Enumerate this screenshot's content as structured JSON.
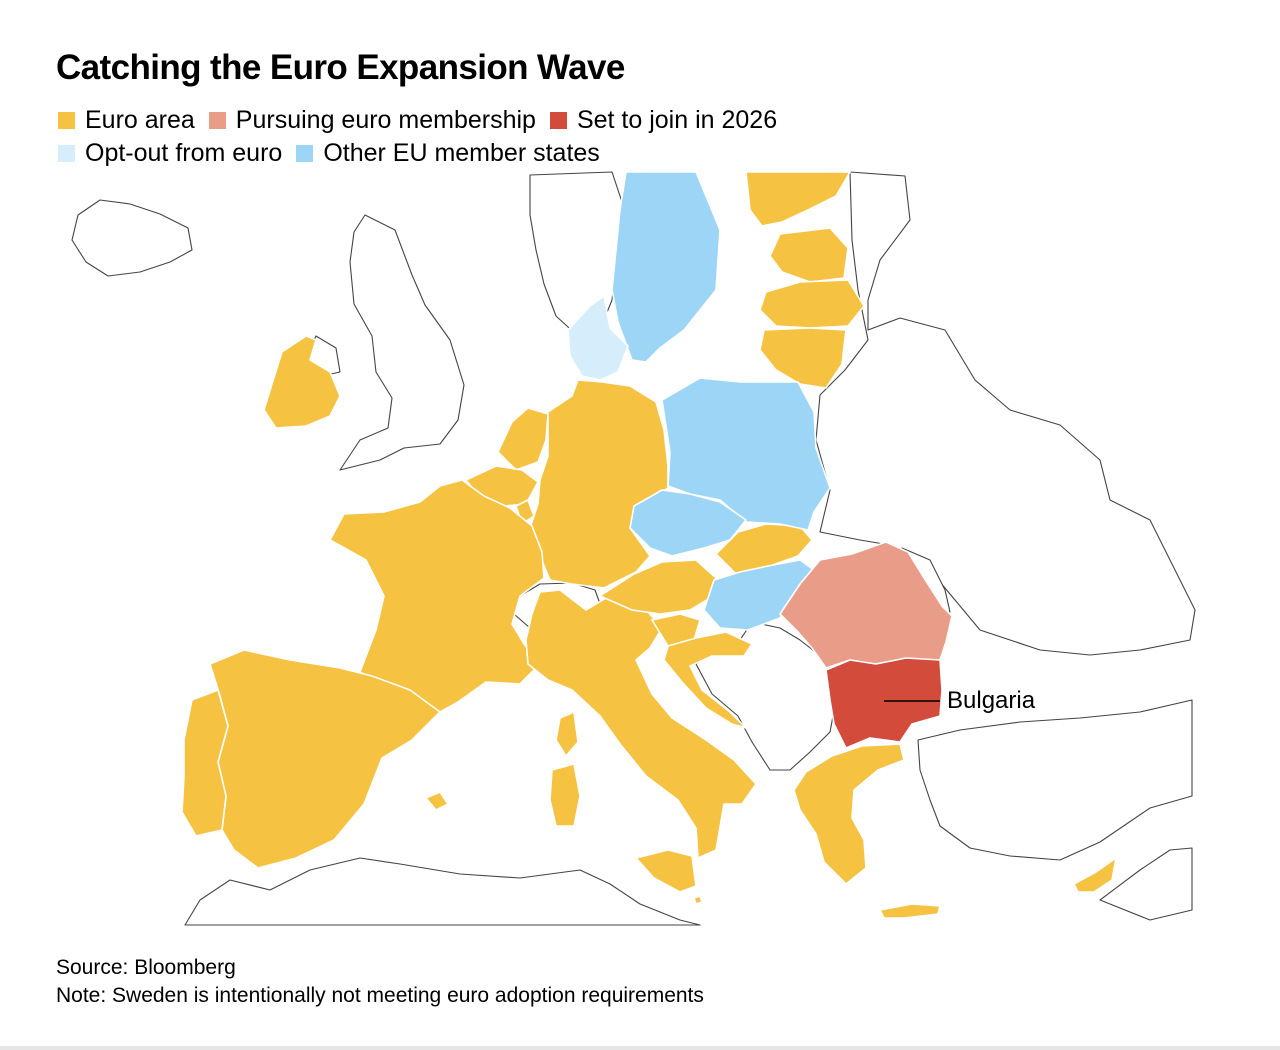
{
  "title": "Catching the Euro Expansion Wave",
  "legend": {
    "row1": [
      {
        "label": "Euro area",
        "color": "#f5c242"
      },
      {
        "label": "Pursuing euro membership",
        "color": "#e99d88"
      },
      {
        "label": "Set to join in 2026",
        "color": "#d24b3b"
      }
    ],
    "row2": [
      {
        "label": "Opt-out from euro",
        "color": "#d6eefb"
      },
      {
        "label": "Other EU member states",
        "color": "#9dd5f6"
      }
    ]
  },
  "map": {
    "callout": "Bulgaria",
    "categories": {
      "euro_area": [
        "Ireland",
        "Portugal",
        "Spain",
        "France",
        "Belgium",
        "Netherlands",
        "Luxembourg",
        "Germany",
        "Austria",
        "Italy",
        "Slovenia",
        "Croatia",
        "Slovakia",
        "Greece",
        "Cyprus",
        "Malta",
        "Finland",
        "Estonia",
        "Latvia",
        "Lithuania"
      ],
      "pursuing": [
        "Romania"
      ],
      "set_to_join_2026": [
        "Bulgaria"
      ],
      "opt_out": [
        "Denmark"
      ],
      "other_eu": [
        "Sweden",
        "Poland",
        "Czechia",
        "Hungary"
      ]
    }
  },
  "source": "Source: Bloomberg",
  "note": "Note: Sweden is intentionally not meeting euro adoption requirements"
}
